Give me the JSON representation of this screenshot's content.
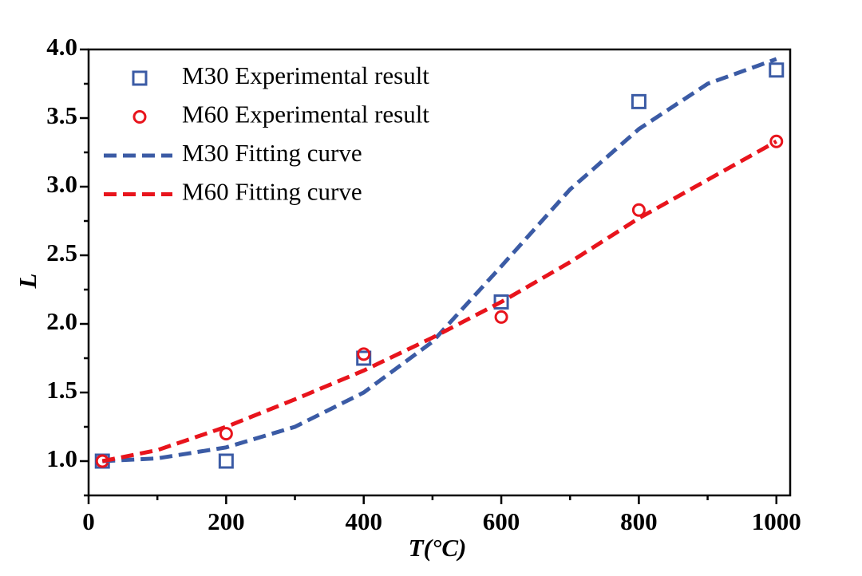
{
  "chart_data": {
    "type": "scatter",
    "xlabel": "T(°C)",
    "ylabel": "L",
    "xlim": [
      0,
      1020
    ],
    "ylim": [
      0.75,
      4.0
    ],
    "xticks": [
      0,
      200,
      400,
      600,
      800,
      1000
    ],
    "xminorticks": [
      100,
      300,
      500,
      700,
      900
    ],
    "yticks": [
      {
        "value": 1,
        "label": "1.0"
      },
      {
        "value": 1.5,
        "label": "1.5"
      },
      {
        "value": 2,
        "label": "2.0"
      },
      {
        "value": 2.5,
        "label": "2.5"
      },
      {
        "value": 3,
        "label": "3.0"
      },
      {
        "value": 3.5,
        "label": "3.5"
      },
      {
        "value": 4,
        "label": "4.0"
      }
    ],
    "yminorticks": [
      0.75,
      1.25,
      1.75,
      2.25,
      2.75,
      3.25,
      3.75
    ],
    "legend": "upper left",
    "series": [
      {
        "name": "M30 Experimental result",
        "color": "#3b5ba5",
        "marker": "square",
        "x": [
          20,
          200,
          400,
          600,
          800,
          1000
        ],
        "values": [
          1.0,
          1.0,
          1.75,
          2.16,
          3.62,
          3.85
        ]
      },
      {
        "name": "M60 Experimental result",
        "color": "#e8141c",
        "marker": "circle",
        "x": [
          20,
          200,
          400,
          600,
          800,
          1000
        ],
        "values": [
          1.0,
          1.2,
          1.78,
          2.05,
          2.83,
          3.33
        ]
      },
      {
        "name": "M30 Fitting curve",
        "color": "#3b5ba5",
        "line_style": "dashed",
        "x": [
          20,
          100,
          200,
          300,
          400,
          500,
          600,
          700,
          800,
          900,
          1000
        ],
        "values": [
          1.0,
          1.02,
          1.1,
          1.25,
          1.5,
          1.87,
          2.42,
          2.98,
          3.42,
          3.75,
          3.93
        ]
      },
      {
        "name": "M60 Fitting curve",
        "color": "#e8141c",
        "line_style": "dashed",
        "x": [
          20,
          100,
          200,
          300,
          400,
          500,
          600,
          700,
          800,
          900,
          1000
        ],
        "values": [
          1.0,
          1.08,
          1.25,
          1.45,
          1.66,
          1.9,
          2.16,
          2.45,
          2.77,
          3.05,
          3.33
        ]
      }
    ]
  }
}
